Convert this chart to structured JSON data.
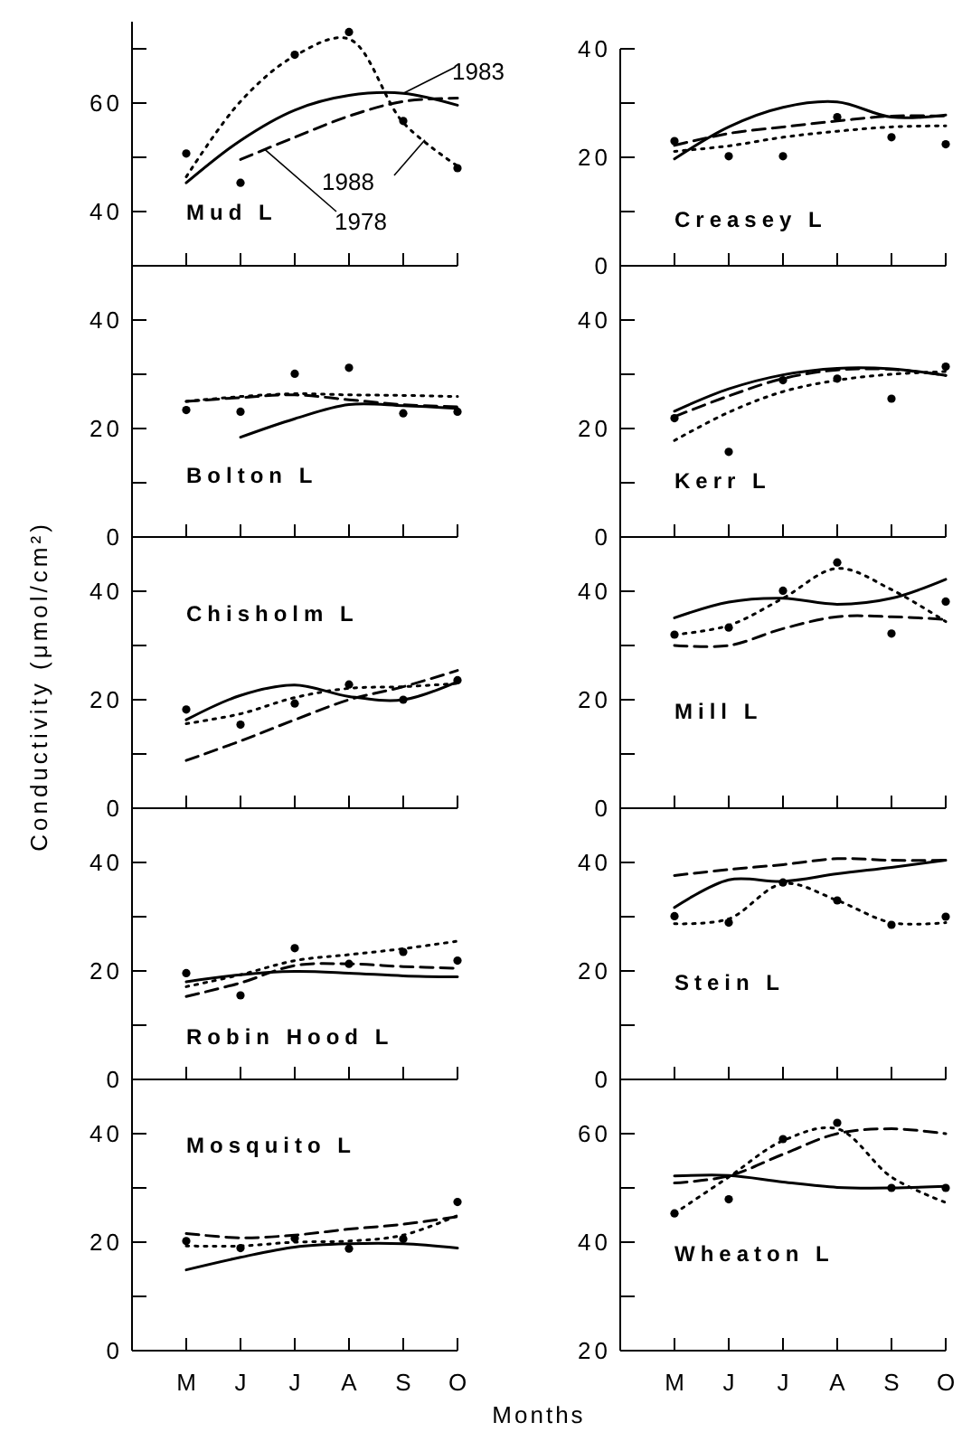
{
  "chart_data": [
    {
      "type": "line",
      "title": "Mud L",
      "categories": [
        null,
        null,
        null,
        null,
        null,
        null
      ],
      "ylim": [
        30,
        75
      ],
      "yticks": [
        40,
        {
          "value": 50,
          "label": null
        },
        60,
        {
          "value": 70,
          "label": null
        }
      ],
      "series": [
        {
          "name": "1978",
          "color": "#000000",
          "line_style": "dashed",
          "values": [
            null,
            49.6,
            53.7,
            57.6,
            60.3,
            60.9
          ]
        },
        {
          "name": "1983",
          "color": "#000000",
          "line_style": "solid",
          "values": [
            45.3,
            53.1,
            58.7,
            61.4,
            61.8,
            59.6
          ]
        },
        {
          "name": "1988",
          "color": "#000000",
          "line_style": "dotted",
          "values": [
            46.4,
            60.3,
            68.7,
            71.8,
            56.4,
            48.4
          ]
        },
        {
          "type": "scatter",
          "marker": "circle",
          "color": "#000000",
          "values": [
            50.7,
            45.3,
            68.9,
            73.1,
            56.7,
            48
          ]
        }
      ]
    },
    {
      "type": "line",
      "title": "Creasey L",
      "categories": [
        null,
        null,
        null,
        null,
        null,
        null
      ],
      "ylim": [
        0,
        40
      ],
      "yticks": [
        0,
        {
          "value": 10,
          "label": null
        },
        20,
        {
          "value": 30,
          "label": null
        },
        40
      ],
      "series": [
        {
          "color": "#000000",
          "line_style": "dashed",
          "values": [
            22.2,
            24.4,
            25.6,
            26.7,
            27.6,
            27.6
          ]
        },
        {
          "color": "#000000",
          "line_style": "solid",
          "values": [
            19.7,
            25.6,
            29.2,
            30.2,
            27.4,
            27.8
          ]
        },
        {
          "color": "#000000",
          "line_style": "dotted",
          "values": [
            21.1,
            22.1,
            23.7,
            24.8,
            25.6,
            25.8
          ]
        },
        {
          "type": "scatter",
          "marker": "circle",
          "color": "#000000",
          "values": [
            23,
            20.2,
            20.2,
            27.4,
            23.7,
            22.4
          ]
        }
      ]
    },
    {
      "type": "line",
      "title": "Bolton L",
      "categories": [
        null,
        null,
        null,
        null,
        null,
        null
      ],
      "ylim": [
        0,
        50
      ],
      "yticks": [
        0,
        {
          "value": 10,
          "label": null
        },
        20,
        {
          "value": 30,
          "label": null
        },
        40
      ],
      "series": [
        {
          "color": "#000000",
          "line_style": "dashed",
          "values": [
            25,
            25.7,
            26.2,
            25.3,
            24.4,
            24
          ]
        },
        {
          "color": "#000000",
          "line_style": "solid",
          "values": [
            null,
            18.4,
            21.8,
            24.4,
            24.2,
            23.7
          ]
        },
        {
          "color": "#000000",
          "line_style": "dotted",
          "values": [
            25,
            25.9,
            26.4,
            26.2,
            26.1,
            25.9
          ]
        },
        {
          "type": "scatter",
          "marker": "circle",
          "color": "#000000",
          "values": [
            23.4,
            23.1,
            30.1,
            31.2,
            22.8,
            23.1
          ]
        }
      ]
    },
    {
      "type": "line",
      "title": "Kerr L",
      "categories": [
        null,
        null,
        null,
        null,
        null,
        null
      ],
      "ylim": [
        0,
        50
      ],
      "yticks": [
        0,
        {
          "value": 10,
          "label": null
        },
        20,
        {
          "value": 30,
          "label": null
        },
        40
      ],
      "series": [
        {
          "color": "#000000",
          "line_style": "dashed",
          "values": [
            22.2,
            26,
            29.2,
            30.8,
            30.9,
            29.8
          ]
        },
        {
          "color": "#000000",
          "line_style": "solid",
          "values": [
            23.2,
            27.3,
            29.9,
            31.1,
            31,
            29.8
          ]
        },
        {
          "color": "#000000",
          "line_style": "dotted",
          "values": [
            17.8,
            23,
            26.8,
            28.9,
            30,
            30.5
          ]
        },
        {
          "type": "scatter",
          "marker": "circle",
          "color": "#000000",
          "values": [
            21.9,
            15.7,
            28.9,
            29.2,
            25.5,
            31.4
          ]
        }
      ]
    },
    {
      "type": "line",
      "title": "Chisholm L",
      "ylabel": "Conductivity (μmol/cm²)",
      "categories": [
        null,
        null,
        null,
        null,
        null,
        null
      ],
      "ylim": [
        0,
        50
      ],
      "yticks": [
        0,
        {
          "value": 10,
          "label": null
        },
        20,
        {
          "value": 30,
          "label": null
        },
        40
      ],
      "series": [
        {
          "color": "#000000",
          "line_style": "dashed",
          "values": [
            8.8,
            12.4,
            16.3,
            20,
            22.4,
            25.4
          ]
        },
        {
          "color": "#000000",
          "line_style": "solid",
          "values": [
            16.3,
            20.8,
            22.7,
            20.6,
            20,
            23.3
          ]
        },
        {
          "color": "#000000",
          "line_style": "dotted",
          "values": [
            15.6,
            17.4,
            20.4,
            22.1,
            22.4,
            23
          ]
        },
        {
          "type": "scatter",
          "marker": "circle",
          "color": "#000000",
          "values": [
            18.2,
            15.4,
            19.3,
            22.8,
            20,
            23.6
          ]
        }
      ]
    },
    {
      "type": "line",
      "title": "Mill L",
      "categories": [
        null,
        null,
        null,
        null,
        null,
        null
      ],
      "ylim": [
        0,
        50
      ],
      "yticks": [
        0,
        {
          "value": 10,
          "label": null
        },
        20,
        {
          "value": 30,
          "label": null
        },
        40
      ],
      "series": [
        {
          "color": "#000000",
          "line_style": "dashed",
          "values": [
            30,
            30,
            33.1,
            35.3,
            35.3,
            34.8
          ]
        },
        {
          "color": "#000000",
          "line_style": "solid",
          "values": [
            35.1,
            38,
            38.7,
            37.6,
            38.7,
            42.2
          ]
        },
        {
          "color": "#000000",
          "line_style": "dotted",
          "values": [
            32,
            33.7,
            38.7,
            44.2,
            40.3,
            34.4
          ]
        },
        {
          "type": "scatter",
          "marker": "circle",
          "color": "#000000",
          "values": [
            32,
            33.3,
            40.1,
            45.3,
            32.2,
            38.1
          ]
        }
      ]
    },
    {
      "type": "line",
      "title": "Robin Hood L",
      "categories": [
        null,
        null,
        null,
        null,
        null,
        null
      ],
      "ylim": [
        0,
        50
      ],
      "yticks": [
        0,
        {
          "value": 10,
          "label": null
        },
        20,
        {
          "value": 30,
          "label": null
        },
        40
      ],
      "series": [
        {
          "color": "#000000",
          "line_style": "dashed",
          "values": [
            15.3,
            17.8,
            21,
            21.3,
            20.8,
            20.5
          ]
        },
        {
          "color": "#000000",
          "line_style": "solid",
          "values": [
            18,
            19.3,
            19.9,
            19.6,
            19.1,
            18.9
          ]
        },
        {
          "color": "#000000",
          "line_style": "dotted",
          "values": [
            17.1,
            19.3,
            21.9,
            23,
            24.1,
            25.5
          ]
        },
        {
          "type": "scatter",
          "marker": "circle",
          "color": "#000000",
          "values": [
            19.6,
            15.5,
            24.2,
            21.3,
            23.5,
            21.9
          ]
        }
      ]
    },
    {
      "type": "line",
      "title": "Stein L",
      "categories": [
        null,
        null,
        null,
        null,
        null,
        null
      ],
      "ylim": [
        0,
        50
      ],
      "yticks": [
        0,
        {
          "value": 10,
          "label": null
        },
        20,
        {
          "value": 30,
          "label": null
        },
        40
      ],
      "series": [
        {
          "color": "#000000",
          "line_style": "dashed",
          "values": [
            37.6,
            38.7,
            39.6,
            40.7,
            40.4,
            40.4
          ]
        },
        {
          "color": "#000000",
          "line_style": "solid",
          "values": [
            31.7,
            36.8,
            36.5,
            37.9,
            39.1,
            40.4
          ]
        },
        {
          "color": "#000000",
          "line_style": "dotted",
          "values": [
            28.7,
            29.6,
            36.1,
            33,
            28.9,
            28.9
          ]
        },
        {
          "type": "scatter",
          "marker": "circle",
          "color": "#000000",
          "values": [
            30.1,
            28.9,
            36.3,
            33,
            28.5,
            30
          ]
        }
      ]
    },
    {
      "type": "line",
      "title": "Mosquito L",
      "xlabel": "Months",
      "categories": [
        "M",
        "J",
        "J",
        "A",
        "S",
        "O"
      ],
      "ylim": [
        0,
        50
      ],
      "yticks": [
        0,
        {
          "value": 10,
          "label": null
        },
        20,
        {
          "value": 30,
          "label": null
        },
        40
      ],
      "series": [
        {
          "color": "#000000",
          "line_style": "dashed",
          "values": [
            21.6,
            20.8,
            21.3,
            22.4,
            23.3,
            24.7
          ]
        },
        {
          "color": "#000000",
          "line_style": "solid",
          "values": [
            14.9,
            17.2,
            19.1,
            19.7,
            19.7,
            18.9
          ]
        },
        {
          "color": "#000000",
          "line_style": "dotted",
          "values": [
            19.3,
            19.3,
            20,
            20.2,
            21.3,
            24.9
          ]
        },
        {
          "type": "scatter",
          "marker": "circle",
          "color": "#000000",
          "values": [
            20.2,
            18.9,
            20.7,
            18.8,
            20.6,
            27.4
          ]
        }
      ]
    },
    {
      "type": "line",
      "title": "Wheaton L",
      "categories": [
        "M",
        "J",
        "J",
        "A",
        "S",
        "O"
      ],
      "ylim": [
        20,
        70
      ],
      "yticks": [
        20,
        {
          "value": 30,
          "label": null
        },
        40,
        {
          "value": 50,
          "label": null
        },
        60
      ],
      "series": [
        {
          "color": "#000000",
          "line_style": "dashed",
          "values": [
            50.9,
            52.2,
            56.2,
            60,
            60.9,
            60
          ]
        },
        {
          "color": "#000000",
          "line_style": "solid",
          "values": [
            52.2,
            52.3,
            51.1,
            50.1,
            50,
            50.3
          ]
        },
        {
          "color": "#000000",
          "line_style": "dotted",
          "values": [
            45.3,
            52,
            58.7,
            60.9,
            52,
            47.3
          ]
        },
        {
          "type": "scatter",
          "marker": "circle",
          "color": "#000000",
          "values": [
            45.3,
            47.9,
            59,
            62,
            50,
            50
          ]
        }
      ]
    }
  ]
}
